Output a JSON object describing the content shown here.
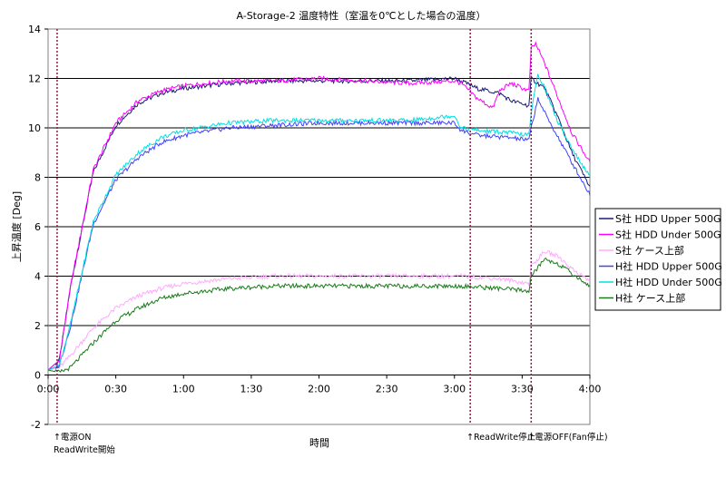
{
  "chart_data": {
    "type": "line",
    "title": "A-Storage-2 温度特性（室温を0℃とした場合の温度）",
    "xlabel": "時間",
    "ylabel": "上昇温度 [Deg]",
    "x_tick_labels": [
      "0:00",
      "0:30",
      "1:00",
      "1:30",
      "2:00",
      "2:30",
      "3:00",
      "3:30",
      "4:00"
    ],
    "x_range_minutes": [
      0,
      240
    ],
    "ylim": [
      -2,
      14
    ],
    "y_ticks": [
      -2,
      0,
      2,
      4,
      6,
      8,
      10,
      12,
      14
    ],
    "grid": "horizontal",
    "legend_position": "right",
    "series": [
      {
        "name": "S社 HDD Upper 500G",
        "color": "#1a1a7a",
        "x": [
          0,
          5,
          10,
          20,
          30,
          40,
          50,
          60,
          80,
          100,
          120,
          140,
          160,
          180,
          183,
          190,
          200,
          205,
          213,
          214,
          220,
          226,
          232,
          240
        ],
        "y": [
          0.2,
          0.6,
          3.6,
          8.2,
          10.1,
          11.0,
          11.4,
          11.6,
          11.8,
          11.9,
          11.9,
          11.9,
          11.9,
          12.0,
          11.9,
          11.6,
          11.4,
          11.1,
          10.9,
          12.0,
          11.6,
          10.4,
          9.0,
          7.6
        ]
      },
      {
        "name": "S社 HDD Under 500G",
        "color": "#ff00ff",
        "x": [
          0,
          5,
          10,
          20,
          30,
          40,
          50,
          60,
          80,
          100,
          120,
          140,
          160,
          180,
          183,
          190,
          197,
          200,
          205,
          213,
          214,
          216,
          220,
          226,
          232,
          240
        ],
        "y": [
          0.2,
          0.6,
          3.6,
          8.3,
          10.2,
          11.1,
          11.5,
          11.7,
          11.9,
          11.9,
          12.0,
          11.9,
          11.8,
          11.9,
          11.8,
          11.2,
          10.8,
          11.5,
          11.8,
          11.5,
          13.2,
          13.4,
          12.6,
          11.2,
          9.8,
          8.6
        ]
      },
      {
        "name": "S社 ケース上部",
        "color": "#ffaaff",
        "x": [
          0,
          5,
          10,
          20,
          30,
          40,
          50,
          60,
          80,
          100,
          120,
          140,
          160,
          180,
          183,
          200,
          213,
          214,
          220,
          226,
          232,
          240
        ],
        "y": [
          0.2,
          0.3,
          0.8,
          1.9,
          2.7,
          3.2,
          3.5,
          3.7,
          3.9,
          4.0,
          4.0,
          4.0,
          4.0,
          4.0,
          4.0,
          3.9,
          3.7,
          4.4,
          5.0,
          4.8,
          4.3,
          3.8
        ]
      },
      {
        "name": "H社 HDD Upper 500G",
        "color": "#4040ff",
        "x": [
          0,
          5,
          10,
          20,
          30,
          40,
          50,
          60,
          80,
          100,
          120,
          140,
          160,
          180,
          183,
          190,
          205,
          213,
          214,
          217,
          220,
          226,
          232,
          240
        ],
        "y": [
          0.2,
          0.4,
          2.0,
          6.1,
          7.9,
          8.8,
          9.4,
          9.7,
          10.0,
          10.1,
          10.2,
          10.2,
          10.2,
          10.2,
          9.9,
          9.7,
          9.6,
          9.5,
          10.0,
          11.2,
          10.6,
          9.6,
          8.6,
          7.3
        ]
      },
      {
        "name": "H社 HDD Under 500G",
        "color": "#00e0e0",
        "x": [
          0,
          5,
          10,
          20,
          30,
          40,
          50,
          60,
          80,
          100,
          120,
          140,
          160,
          180,
          183,
          190,
          205,
          213,
          214,
          217,
          220,
          226,
          232,
          240
        ],
        "y": [
          0.2,
          0.4,
          2.1,
          6.2,
          8.1,
          9.0,
          9.6,
          9.9,
          10.2,
          10.3,
          10.3,
          10.3,
          10.3,
          10.5,
          10.0,
          9.9,
          9.8,
          9.7,
          10.6,
          12.2,
          11.6,
          10.2,
          9.2,
          8.0
        ]
      },
      {
        "name": "H社 ケース上部",
        "color": "#1a7a1a",
        "x": [
          0,
          5,
          10,
          20,
          30,
          40,
          50,
          60,
          80,
          100,
          120,
          140,
          160,
          180,
          183,
          200,
          213,
          214,
          220,
          226,
          232,
          240
        ],
        "y": [
          0.2,
          0.1,
          0.3,
          1.3,
          2.2,
          2.7,
          3.1,
          3.3,
          3.5,
          3.6,
          3.6,
          3.6,
          3.6,
          3.6,
          3.6,
          3.5,
          3.4,
          4.0,
          4.7,
          4.5,
          4.1,
          3.6
        ]
      }
    ],
    "markers": [
      {
        "x": 4,
        "lines": [
          "↑電源ON",
          "ReadWrite開始"
        ]
      },
      {
        "x": 187,
        "lines": [
          "↑ReadWrite停止"
        ]
      },
      {
        "x": 214,
        "lines": [
          "↑電源OFF(Fan停止)"
        ]
      }
    ]
  }
}
